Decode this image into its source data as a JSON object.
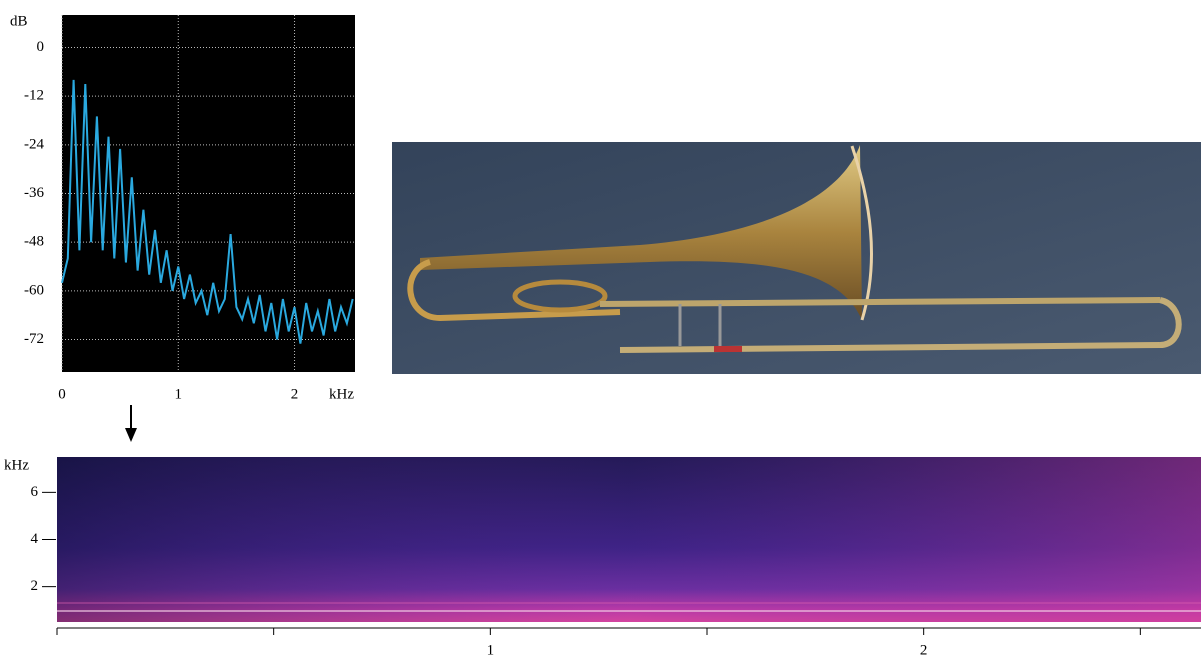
{
  "chart_data": [
    {
      "type": "line",
      "y_label": "dB",
      "x_label": "kHz",
      "x": [
        0,
        0.05,
        0.1,
        0.15,
        0.2,
        0.25,
        0.3,
        0.35,
        0.4,
        0.45,
        0.5,
        0.55,
        0.6,
        0.65,
        0.7,
        0.75,
        0.8,
        0.85,
        0.9,
        0.95,
        1.0,
        1.05,
        1.1,
        1.15,
        1.2,
        1.25,
        1.3,
        1.35,
        1.4,
        1.45,
        1.5,
        1.55,
        1.6,
        1.65,
        1.7,
        1.75,
        1.8,
        1.85,
        1.9,
        1.95,
        2.0,
        2.05,
        2.1,
        2.15,
        2.2,
        2.25,
        2.3,
        2.35,
        2.4,
        2.45,
        2.5
      ],
      "values": [
        -58,
        -52,
        -8,
        -50,
        -9,
        -48,
        -17,
        -50,
        -22,
        -52,
        -25,
        -53,
        -32,
        -55,
        -40,
        -56,
        -45,
        -58,
        -50,
        -60,
        -54,
        -62,
        -56,
        -63,
        -60,
        -66,
        -58,
        -65,
        -62,
        -46,
        -64,
        -67,
        -62,
        -68,
        -61,
        -70,
        -63,
        -72,
        -62,
        -70,
        -64,
        -73,
        -63,
        -70,
        -65,
        -71,
        -62,
        -70,
        -64,
        -68,
        -62
      ],
      "color": "#2aa9df",
      "xlim": [
        0,
        2.52
      ],
      "ylim": [
        -80,
        8
      ],
      "xticks": [
        0,
        1,
        2
      ],
      "yticks": [
        0,
        -12,
        -24,
        -36,
        -48,
        -60,
        -72
      ],
      "grid": true
    },
    {
      "type": "spectrogram",
      "y_label": "kHz",
      "xlim": [
        0,
        2.64
      ],
      "ylim": [
        0.5,
        7.5
      ],
      "xticks": [
        1,
        2
      ],
      "minor_xticks": [
        0,
        0.5,
        1.5,
        2.5
      ],
      "yticks": [
        2,
        4,
        6
      ]
    }
  ]
}
